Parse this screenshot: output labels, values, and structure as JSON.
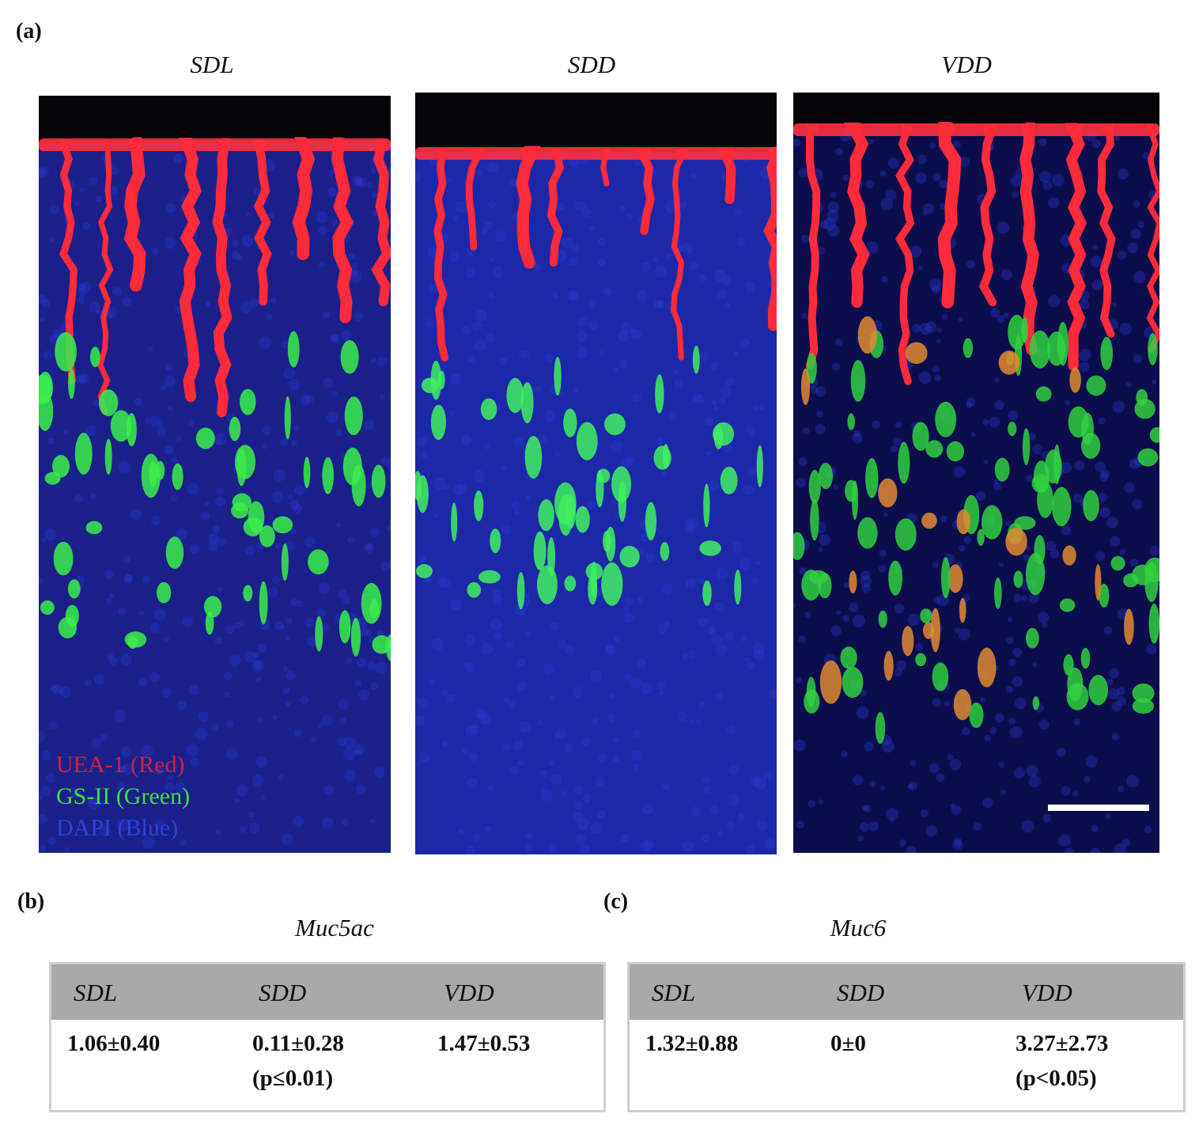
{
  "panel_a": {
    "label": "(a)",
    "images": [
      {
        "title": "SDL"
      },
      {
        "title": "SDD"
      },
      {
        "title": "VDD"
      }
    ],
    "legend": [
      "UEA-1 (Red)",
      "GS-II (Green)",
      "DAPI (Blue)"
    ]
  },
  "panel_b": {
    "label": "(b)",
    "title": "Muc5ac",
    "table": {
      "header": [
        "SDL",
        "SDD",
        "VDD"
      ],
      "rows": [
        [
          [
            "1.06±0.40"
          ],
          [
            "0.11±0.28",
            "(p≤0.01)"
          ],
          [
            "1.47±0.53"
          ]
        ]
      ]
    }
  },
  "panel_c": {
    "label": "(c)",
    "title": "Muc6",
    "table": {
      "header": [
        "SDL",
        "SDD",
        "VDD"
      ],
      "rows": [
        [
          [
            "1.32±0.88"
          ],
          [
            "0±0"
          ],
          [
            "3.27±2.73",
            "(p<0.05)"
          ]
        ]
      ]
    }
  }
}
